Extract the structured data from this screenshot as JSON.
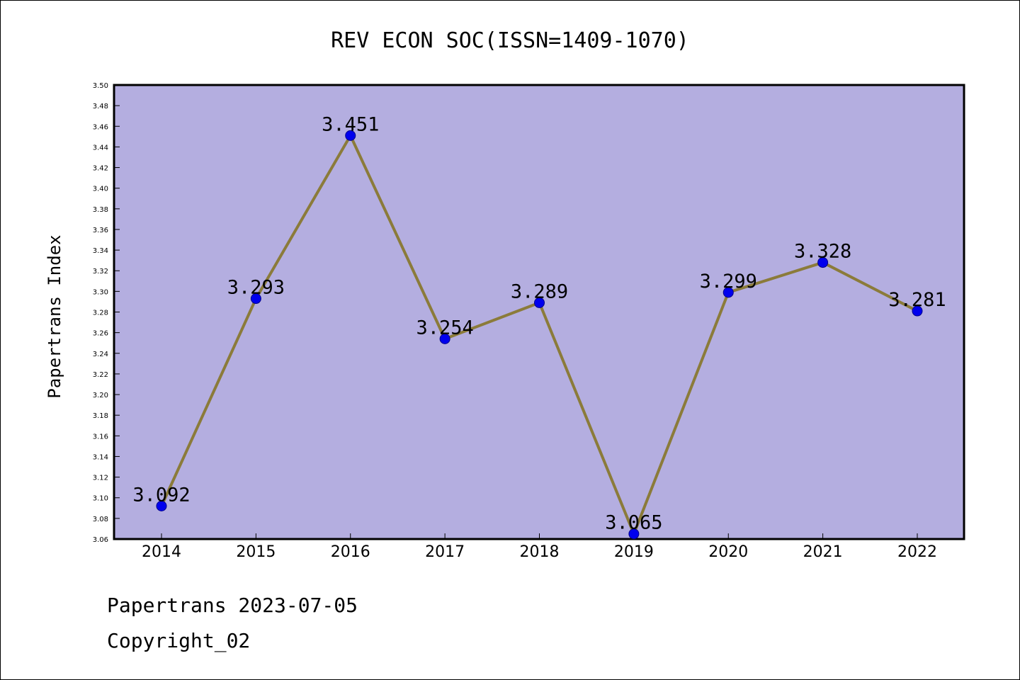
{
  "chart_data": {
    "type": "line",
    "title": "REV ECON SOC(ISSN=1409-1070)",
    "xlabel": "",
    "ylabel": "Papertrans Index",
    "categories": [
      "2014",
      "2015",
      "2016",
      "2017",
      "2018",
      "2019",
      "2020",
      "2021",
      "2022"
    ],
    "series": [
      {
        "values": [
          3.092,
          3.293,
          3.451,
          3.254,
          3.289,
          3.065,
          3.299,
          3.328,
          3.281
        ],
        "data_labels": [
          "3.092",
          "3.293",
          "3.451",
          "3.254",
          "3.289",
          "3.065",
          "3.299",
          "3.328",
          "3.281"
        ]
      }
    ],
    "ylim": [
      3.06,
      3.5
    ],
    "yticks": [
      "3.06",
      "3.08",
      "3.10",
      "3.12",
      "3.14",
      "3.16",
      "3.18",
      "3.20",
      "3.22",
      "3.24",
      "3.26",
      "3.28",
      "3.30",
      "3.32",
      "3.34",
      "3.36",
      "3.38",
      "3.40",
      "3.42",
      "3.44",
      "3.46",
      "3.48",
      "3.50"
    ],
    "grid": false,
    "legend": "none"
  },
  "footer": {
    "line1": "Papertrans 2023-07-05",
    "line2": "Copyright_02"
  },
  "colors": {
    "plot_background": "#b4aee0",
    "line": "#8b7b3a",
    "marker": "#0000ee"
  }
}
